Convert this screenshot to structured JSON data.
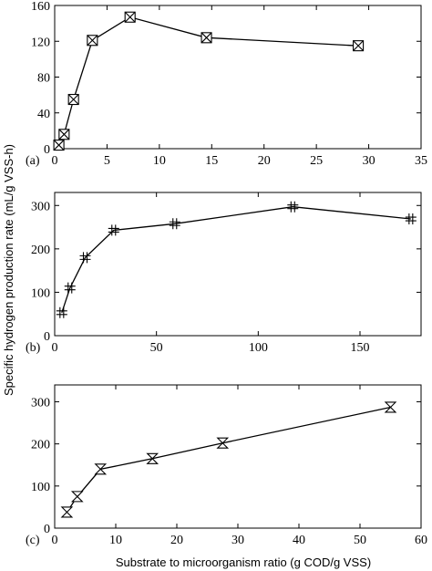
{
  "chart_data": [
    {
      "type": "line",
      "panel_label": "(a)",
      "xlim": [
        0,
        35
      ],
      "ylim": [
        0,
        160
      ],
      "xticks": [
        "0",
        "5",
        "10",
        "15",
        "20",
        "25",
        "30",
        "35"
      ],
      "yticks": [
        "0",
        "40",
        "80",
        "120",
        "160"
      ],
      "marker": "boxed-x",
      "series": [
        {
          "x": [
            0.4,
            0.9,
            1.8,
            3.6,
            7.2,
            14.5,
            29.0
          ],
          "y": [
            4,
            16,
            55,
            121,
            147,
            124,
            115
          ]
        }
      ]
    },
    {
      "type": "line",
      "panel_label": "(b)",
      "xlim": [
        0,
        180
      ],
      "ylim": [
        0,
        330
      ],
      "xticks": [
        "0",
        "50",
        "100",
        "150"
      ],
      "yticks": [
        "0",
        "100",
        "200",
        "300"
      ],
      "marker": "double-cross",
      "series": [
        {
          "x": [
            3.5,
            7.5,
            15,
            29,
            59,
            117,
            175
          ],
          "y": [
            53,
            110,
            180,
            243,
            258,
            297,
            269
          ]
        }
      ]
    },
    {
      "type": "line",
      "panel_label": "(c)",
      "xlim": [
        0,
        60
      ],
      "ylim": [
        0,
        340
      ],
      "xticks": [
        "0",
        "10",
        "20",
        "30",
        "40",
        "50",
        "60"
      ],
      "yticks": [
        "0",
        "100",
        "200",
        "300"
      ],
      "marker": "hourglass",
      "series": [
        {
          "x": [
            2,
            3.7,
            7.5,
            16,
            27.5,
            55
          ],
          "y": [
            38,
            75,
            140,
            165,
            202,
            287
          ]
        }
      ]
    }
  ],
  "labels": {
    "ylabel": "Specific hydrogen production rate (mL/g VSS-h)",
    "xlabel": "Substrate to microorganism ratio (g COD/g VSS)"
  }
}
